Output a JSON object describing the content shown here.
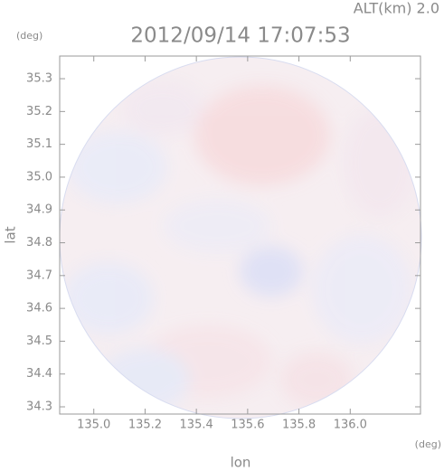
{
  "chart_data": {
    "type": "radar-map",
    "title": "2012/09/14 17:07:53",
    "altitude_label": "ALT(km) 2.0",
    "y_unit": "(deg)",
    "x_unit": "(deg)",
    "xlabel": "lon",
    "ylabel": "lat",
    "xlim": [
      134.867,
      136.274
    ],
    "ylim": [
      34.278,
      35.369
    ],
    "xticks": [
      {
        "value": 135,
        "label": "135.0"
      },
      135.2,
      135.4,
      135.6,
      135.8,
      {
        "value": 136,
        "label": "136.0"
      }
    ],
    "yticks": [
      34.3,
      34.4,
      34.5,
      34.6,
      34.7,
      34.8,
      34.9,
      {
        "value": 35,
        "label": "35.0"
      },
      35.1,
      35.2,
      35.3
    ]
  }
}
